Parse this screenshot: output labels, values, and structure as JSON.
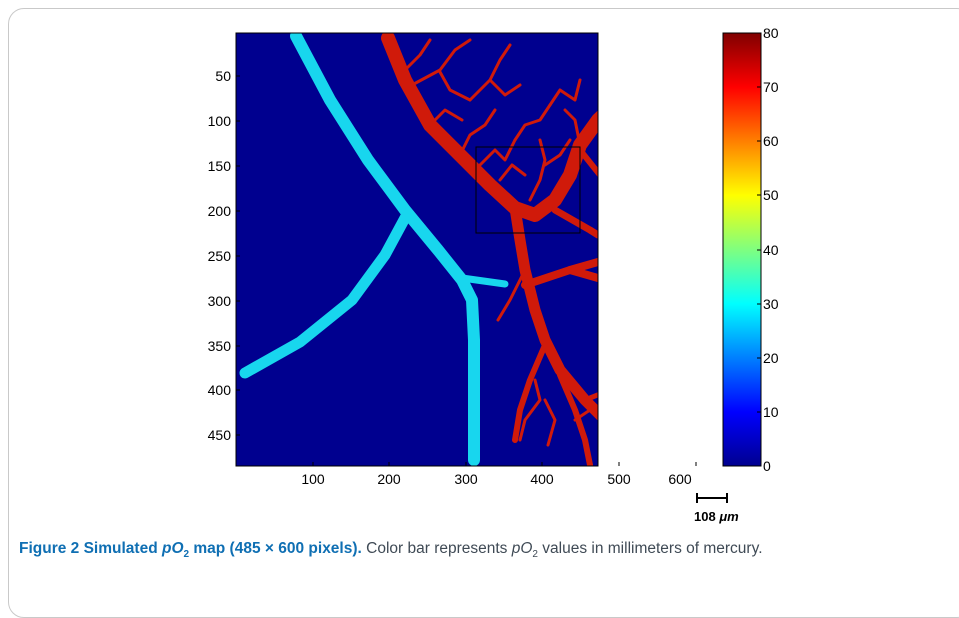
{
  "figure": {
    "y_ticks": [
      "50",
      "100",
      "150",
      "200",
      "250",
      "300",
      "350",
      "400",
      "450"
    ],
    "x_ticks": [
      "100",
      "200",
      "300",
      "400",
      "500",
      "600"
    ],
    "colorbar_ticks": [
      "0",
      "10",
      "20",
      "30",
      "40",
      "50",
      "60",
      "70",
      "80"
    ],
    "scale_bar_value": "108",
    "scale_bar_unit": "μm",
    "colors": {
      "background": "#00008f",
      "artery": "#d01a0a",
      "vein": "#18d6ee",
      "box": "#000000"
    }
  },
  "caption": {
    "title_prefix": "Figure 2 Simulated ",
    "title_var": "pO",
    "title_sub": "2",
    "title_suffix": " map (485 × 600 pixels).",
    "body_prefix": " Color bar represents ",
    "body_var": "pO",
    "body_sub": "2",
    "body_suffix": " values in millimeters of mercury."
  }
}
